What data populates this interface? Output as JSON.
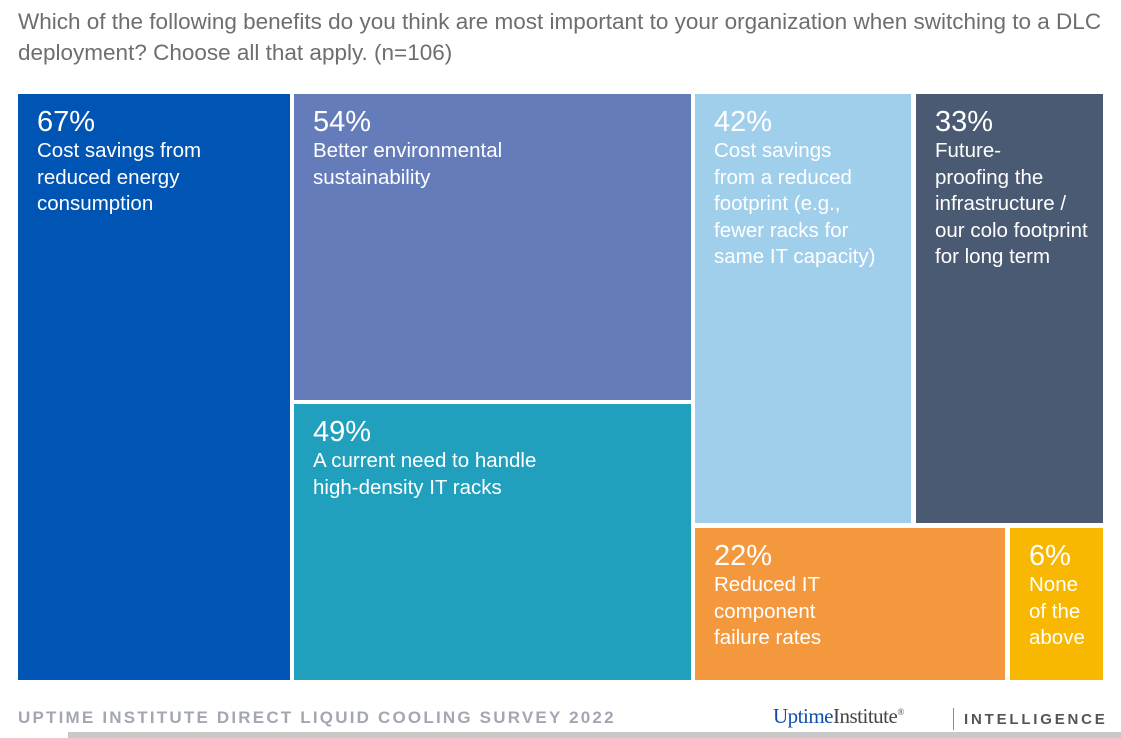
{
  "chart_data": {
    "type": "treemap",
    "title": "Which of the following benefits do you think are most important to your organization when switching to a DLC deployment? Choose all that apply. (n=106)",
    "unit": "%",
    "items": [
      {
        "value": 67,
        "pct_label": "67%",
        "label": "Cost savings from\nreduced energy\nconsumption",
        "color": "#0054b4"
      },
      {
        "value": 54,
        "pct_label": "54%",
        "label": "Better environmental\nsustainability",
        "color": "#657cbb"
      },
      {
        "value": 49,
        "pct_label": "49%",
        "label": "A current need to handle\nhigh-density IT racks",
        "color": "#21a0be"
      },
      {
        "value": 42,
        "pct_label": "42%",
        "label": "Cost savings\nfrom a reduced\nfootprint (e.g.,\nfewer racks for\nsame IT capacity)",
        "color": "#a0cfec"
      },
      {
        "value": 33,
        "pct_label": "33%",
        "label": "Future-\nproofing the\ninfrastructure /\nour colo footprint\nfor long term",
        "color": "#4a5a72"
      },
      {
        "value": 22,
        "pct_label": "22%",
        "label": "Reduced IT\ncomponent\nfailure rates",
        "color": "#f4983e"
      },
      {
        "value": 6,
        "pct_label": "6%",
        "label": "None\nof the\nabove",
        "color": "#f8b700"
      }
    ]
  },
  "footer": {
    "source": "UPTIME INSTITUTE DIRECT LIQUID COOLING SURVEY 2022",
    "brand_part1": "Uptime",
    "brand_part2": "Institute",
    "brand_mark": "®",
    "division": "INTELLIGENCE"
  }
}
